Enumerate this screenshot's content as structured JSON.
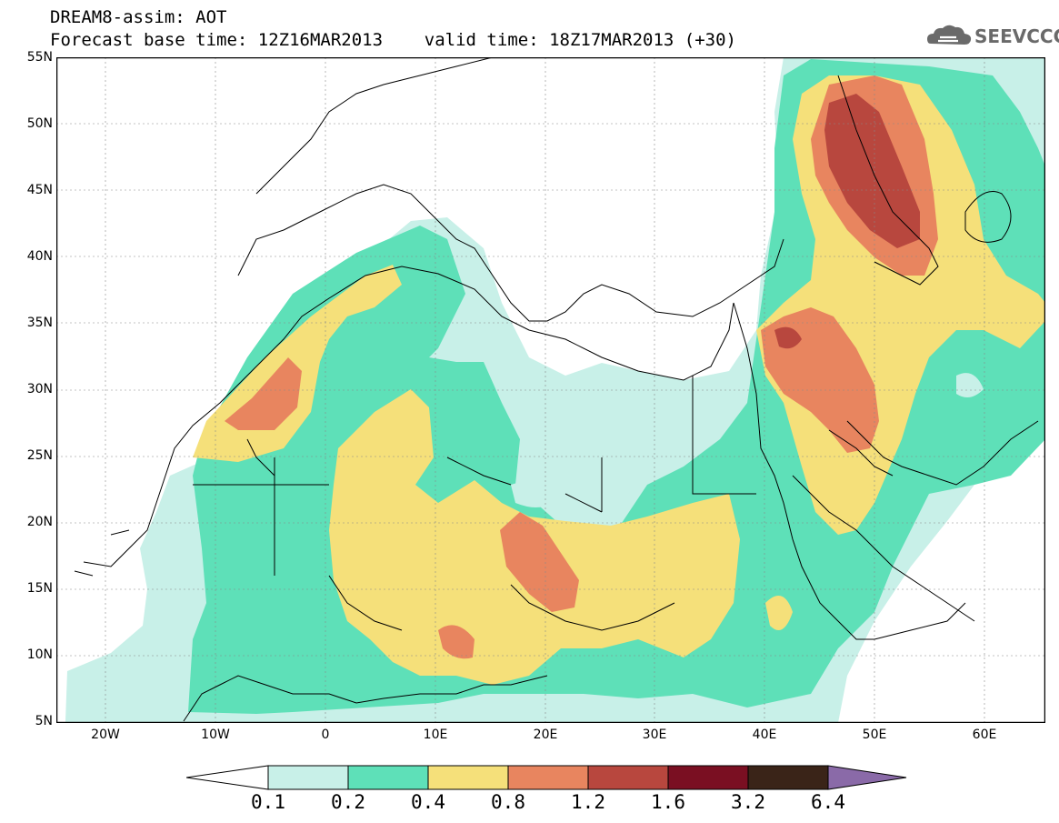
{
  "header": {
    "title_line1": "DREAM8-assim: AOT",
    "title_line2": "Forecast base time: 12Z16MAR2013    valid time: 18Z17MAR2013 (+30)"
  },
  "logo": {
    "text": "SEEVCCC",
    "icon": "cloud-icon",
    "color": "#6a6a6a"
  },
  "map": {
    "lat_labels": [
      "55N",
      "50N",
      "45N",
      "40N",
      "35N",
      "30N",
      "25N",
      "20N",
      "15N",
      "10N",
      "5N"
    ],
    "lon_labels": [
      "20W",
      "10W",
      "0",
      "10E",
      "20E",
      "30E",
      "40E",
      "50E",
      "60E"
    ],
    "extent": {
      "lon_min": -25,
      "lon_max": 65,
      "lat_min": 5,
      "lat_max": 55
    }
  },
  "colorbar": {
    "labels": [
      "0.1",
      "0.2",
      "0.4",
      "0.8",
      "1.2",
      "1.6",
      "3.2",
      "6.4"
    ],
    "colors": [
      "#c8f0e8",
      "#5ee0b8",
      "#f5e07a",
      "#e8855f",
      "#b8473e",
      "#7a0f22",
      "#3a2418",
      "#8a6aa8"
    ]
  }
}
